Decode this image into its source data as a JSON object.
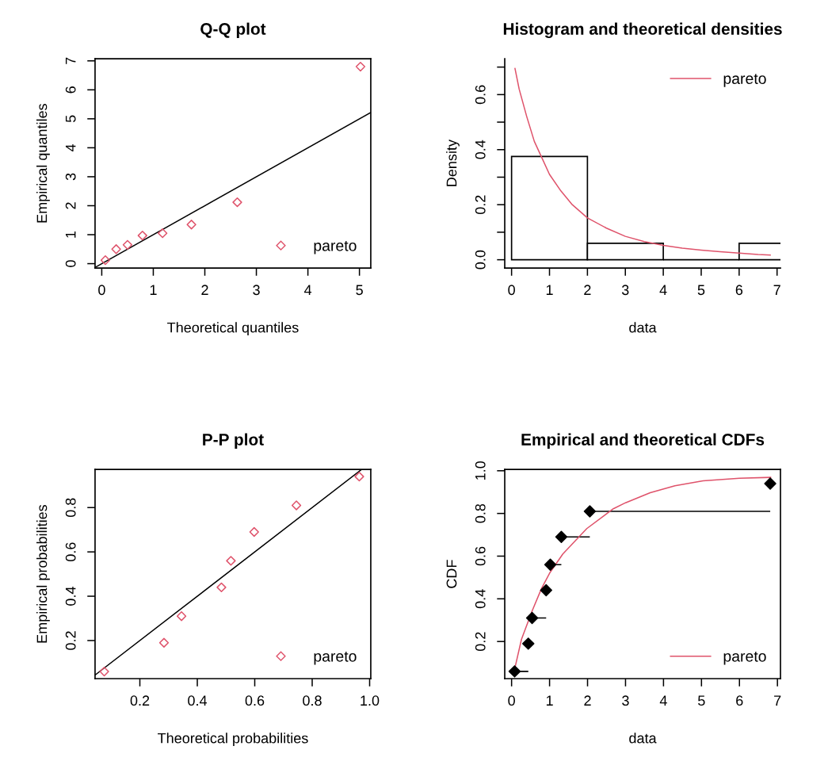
{
  "chart_data": [
    {
      "type": "scatter",
      "title": "Q-Q plot",
      "xlabel": "Theoretical quantiles",
      "ylabel": "Empirical quantiles",
      "marker": "diamond",
      "legend": "bottom right",
      "xlim": [
        -0.13,
        5.22
      ],
      "ylim": [
        -0.15,
        7.07
      ],
      "xticks": [
        0,
        1,
        2,
        3,
        4,
        5
      ],
      "yticks": [
        0,
        1,
        2,
        3,
        4,
        5,
        6,
        7
      ],
      "series": [
        {
          "name": "pareto",
          "color": "#df536b",
          "x": [
            0.07,
            0.28,
            0.5,
            0.79,
            1.18,
            1.74,
            2.63,
            5.02
          ],
          "values": [
            0.12,
            0.5,
            0.65,
            0.97,
            1.05,
            1.35,
            2.12,
            6.8
          ]
        },
        {
          "type": "line",
          "marker": "none",
          "color": "#000000",
          "x": [
            -0.13,
            5.22
          ],
          "values": [
            -0.13,
            5.22
          ]
        }
      ]
    },
    {
      "type": "histogram",
      "title": "Histogram and theoretical densities",
      "xlabel": "data",
      "ylabel": "Density",
      "legend": "top right",
      "color": "#000000",
      "bins": [
        0,
        2,
        4,
        6,
        8
      ],
      "values": [
        0.375,
        0.06,
        0,
        0.06
      ],
      "xlim": [
        -0.18,
        7.09
      ],
      "ylim": [
        -0.03,
        0.73
      ],
      "xticks": [
        0,
        1,
        2,
        3,
        4,
        5,
        6,
        7
      ],
      "yticks": [
        {
          "value": 0,
          "label": "0.0"
        },
        {
          "value": 0.1,
          "label": null
        },
        {
          "value": 0.2,
          "label": "0.2"
        },
        {
          "value": 0.3,
          "label": null
        },
        {
          "value": 0.4,
          "label": "0.4"
        },
        {
          "value": 0.5,
          "label": null
        },
        {
          "value": 0.6,
          "label": "0.6"
        },
        {
          "value": 0.7,
          "label": null
        }
      ],
      "series": [
        {
          "type": "line",
          "marker": "none",
          "name": "pareto",
          "color": "#df536b",
          "x": [
            0.09,
            0.2,
            0.4,
            0.6,
            0.8,
            1.0,
            1.3,
            1.6,
            2.0,
            2.5,
            3.0,
            3.5,
            4.0,
            4.5,
            5.0,
            5.5,
            6.0,
            6.5,
            6.82
          ],
          "values": [
            0.695,
            0.62,
            0.52,
            0.43,
            0.37,
            0.31,
            0.25,
            0.2,
            0.152,
            0.115,
            0.085,
            0.066,
            0.052,
            0.042,
            0.035,
            0.029,
            0.024,
            0.019,
            0.017
          ]
        }
      ]
    },
    {
      "type": "scatter",
      "title": "P-P plot",
      "xlabel": "Theoretical probabilities",
      "ylabel": "Empirical probabilities",
      "marker": "diamond",
      "legend": "bottom right",
      "xlim": [
        0.044,
        1.004
      ],
      "ylim": [
        0.028,
        0.972
      ],
      "xticks": [
        0.2,
        0.4,
        0.6,
        0.8,
        {
          "value": 1,
          "label": "1.0"
        }
      ],
      "yticks": [
        0.2,
        0.4,
        0.6,
        0.8
      ],
      "series": [
        {
          "name": "pareto",
          "color": "#df536b",
          "x": [
            0.076,
            0.284,
            0.345,
            0.484,
            0.517,
            0.598,
            0.745,
            0.964
          ],
          "values": [
            0.06,
            0.19,
            0.31,
            0.44,
            0.56,
            0.69,
            0.81,
            0.94
          ]
        },
        {
          "type": "line",
          "marker": "none",
          "color": "#000000",
          "x": [
            0.044,
            0.972
          ],
          "values": [
            0.044,
            0.972
          ]
        }
      ]
    },
    {
      "type": "scatter",
      "title": "Empirical and theoretical CDFs",
      "xlabel": "data",
      "ylabel": "CDF",
      "marker": "diamond",
      "legend": "bottom right",
      "xlim": [
        -0.18,
        7.08
      ],
      "ylim": [
        0.026,
        1.006
      ],
      "xticks": [
        0,
        1,
        2,
        3,
        4,
        5,
        6,
        7
      ],
      "yticks": [
        0.2,
        0.4,
        0.6,
        0.8,
        {
          "value": 1,
          "label": "1.0"
        }
      ],
      "series": [
        {
          "color": "#000000",
          "x": [
            0.08,
            0.44,
            0.54,
            0.91,
            1.02,
            1.31,
            2.06,
            6.81
          ],
          "values": [
            0.06,
            0.19,
            0.31,
            0.44,
            0.56,
            0.69,
            0.81,
            0.94
          ],
          "xerrors": [
            [
              0.08,
              0.44
            ],
            [
              0.44,
              0.54
            ],
            [
              0.54,
              0.91
            ],
            [
              0.91,
              1.02
            ],
            [
              1.02,
              1.31
            ],
            [
              1.31,
              2.06
            ],
            [
              2.06,
              6.81
            ],
            null
          ]
        },
        {
          "type": "line",
          "marker": "none",
          "name": "pareto",
          "color": "#df536b",
          "x": [
            0.08,
            0.26,
            0.54,
            0.79,
            1.0,
            1.35,
            1.98,
            2.68,
            3.0,
            3.65,
            4.3,
            5.04,
            6.0,
            6.82
          ],
          "values": [
            0.07,
            0.21,
            0.343,
            0.449,
            0.52,
            0.61,
            0.729,
            0.822,
            0.85,
            0.897,
            0.93,
            0.953,
            0.965,
            0.969
          ]
        }
      ]
    }
  ]
}
